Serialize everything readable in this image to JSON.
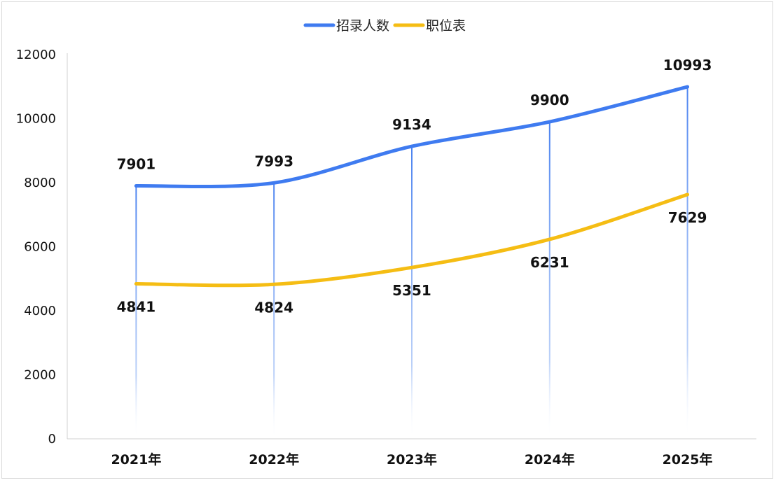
{
  "chart_data": {
    "type": "line",
    "title": "",
    "xlabel": "",
    "ylabel": "",
    "categories": [
      "2021年",
      "2022年",
      "2023年",
      "2024年",
      "2025年"
    ],
    "ylim": [
      0,
      12000
    ],
    "yticks": [
      0,
      2000,
      4000,
      6000,
      8000,
      10000,
      12000
    ],
    "grid": false,
    "legend_position": "top-center",
    "drop_lines": true,
    "series": [
      {
        "name": "招录人数",
        "color": "#3f7bf0",
        "values": [
          7901,
          7993,
          9134,
          9900,
          10993
        ],
        "label_position": "above"
      },
      {
        "name": "职位表",
        "color": "#f5bd14",
        "values": [
          4841,
          4824,
          5351,
          6231,
          7629
        ],
        "label_position": "below"
      }
    ]
  }
}
